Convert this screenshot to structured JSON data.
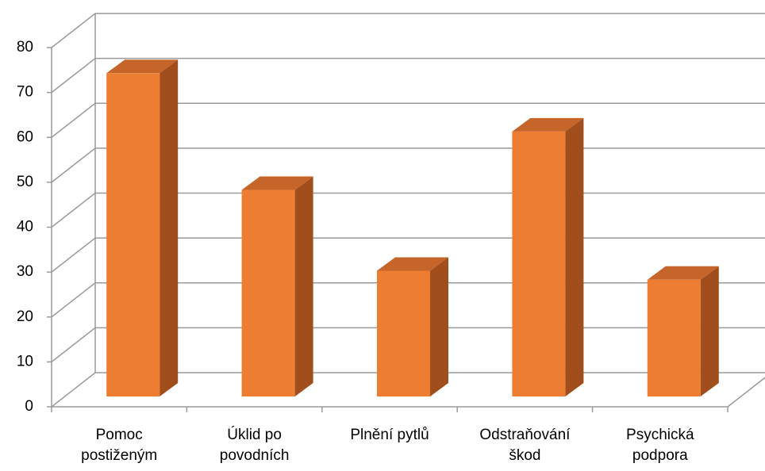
{
  "chart_data": {
    "type": "bar3d",
    "categories": [
      "Pomoc postiženým",
      "Úklid po povodních",
      "Plnění pytlů",
      "Odstraňování škod",
      "Psychická podpora"
    ],
    "values": [
      72,
      46,
      28,
      59,
      26
    ],
    "color": "#ED7D31",
    "side_color": "#A14E1C",
    "top_color": "#C5652A",
    "ylim": [
      0,
      80
    ],
    "yticks": [
      0,
      10,
      20,
      30,
      40,
      50,
      60,
      70,
      80
    ],
    "grid": true
  }
}
